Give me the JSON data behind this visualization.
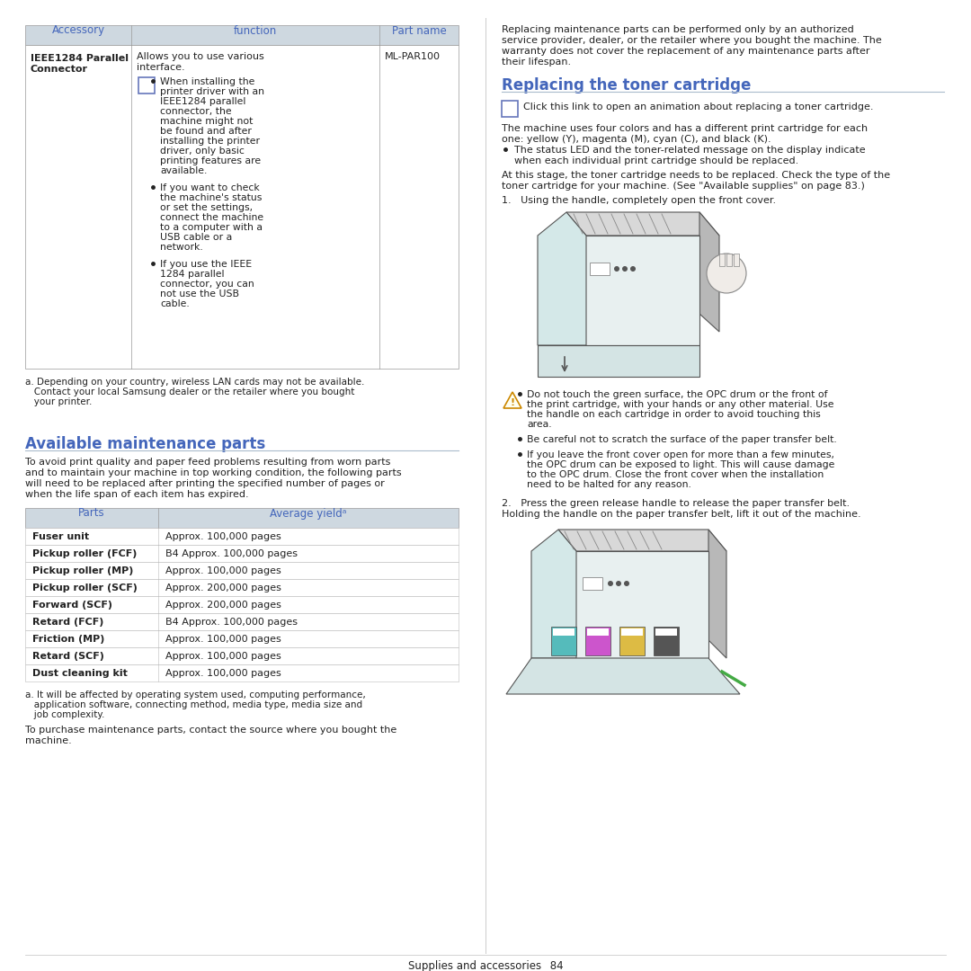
{
  "bg_color": "#ffffff",
  "header_bg": "#ced8e0",
  "blue_color": "#4466bb",
  "dark_text": "#222222",
  "gray_text": "#555555",
  "divider_color": "#aabbcc",
  "table1_header": [
    "Accessory",
    "function",
    "Part name"
  ],
  "table1_col3": "ML-PAR100",
  "footnote_a": "a. Depending on your country, wireless LAN cards may not be available.\n   Contact your local Samsung dealer or the retailer where you bought\n   your printer.",
  "section1_title": "Available maintenance parts",
  "section1_intro": [
    "To avoid print quality and paper feed problems resulting from worn parts",
    "and to maintain your machine in top working condition, the following parts",
    "will need to be replaced after printing the specified number of pages or",
    "when the life span of each item has expired."
  ],
  "table2_header": [
    "Parts",
    "Average yieldᵃ"
  ],
  "table2_rows": [
    [
      "Fuser unit",
      "Approx. 100,000 pages"
    ],
    [
      "Pickup roller (FCF)",
      "B4 Approx. 100,000 pages"
    ],
    [
      "Pickup roller (MP)",
      "Approx. 100,000 pages"
    ],
    [
      "Pickup roller (SCF)",
      "Approx. 200,000 pages"
    ],
    [
      "Forward (SCF)",
      "Approx. 200,000 pages"
    ],
    [
      "Retard (FCF)",
      "B4 Approx. 100,000 pages"
    ],
    [
      "Friction (MP)",
      "Approx. 100,000 pages"
    ],
    [
      "Retard (SCF)",
      "Approx. 100,000 pages"
    ],
    [
      "Dust cleaning kit",
      "Approx. 100,000 pages"
    ]
  ],
  "footnote_b": [
    "a. It will be affected by operating system used, computing performance,",
    "   application software, connecting method, media type, media size and",
    "   job complexity."
  ],
  "footer_purchase": [
    "To purchase maintenance parts, contact the source where you bought the",
    "machine."
  ],
  "right_intro": [
    "Replacing maintenance parts can be performed only by an authorized",
    "service provider, dealer, or the retailer where you bought the machine. The",
    "warranty does not cover the replacement of any maintenance parts after",
    "their lifespan."
  ],
  "section2_title": "Replacing the toner cartridge",
  "toner_note": "Click this link to open an animation about replacing a toner cartridge.",
  "toner_intro": [
    "The machine uses four colors and has a different print cartridge for each",
    "one: yellow (Y), magenta (M), cyan (C), and black (K)."
  ],
  "toner_bullet1": [
    "The status LED and the toner-related message on the display indicate",
    "when each individual print cartridge should be replaced."
  ],
  "toner_stage": [
    "At this stage, the toner cartridge needs to be replaced. Check the type of the",
    "toner cartridge for your machine. (See \"Available supplies\" on page 83.)"
  ],
  "step1": "1.   Using the handle, completely open the front cover.",
  "caution_bullets": [
    [
      "Do not touch the green surface, the OPC drum or the front of",
      "the print cartridge, with your hands or any other material. Use",
      "the handle on each cartridge in order to avoid touching this",
      "area."
    ],
    [
      "Be careful not to scratch the surface of the paper transfer belt."
    ],
    [
      "If you leave the front cover open for more than a few minutes,",
      "the OPC drum can be exposed to light. This will cause damage",
      "to the OPC drum. Close the front cover when the installation",
      "need to be halted for any reason."
    ]
  ],
  "step2": [
    "2.   Press the green release handle to release the paper transfer belt.",
    "     Holding the handle on the paper transfer belt, lift it out of the machine."
  ],
  "page_footer": "Supplies and accessories_ 84"
}
